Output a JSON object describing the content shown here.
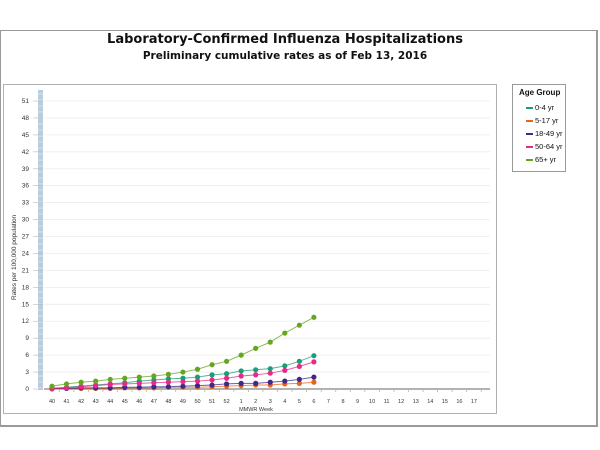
{
  "chart_data": {
    "type": "line",
    "title": "Laboratory-Confirmed Influenza Hospitalizations",
    "subtitle": "Preliminary cumulative rates as of Feb 13, 2016",
    "xlabel": "MMWR Week",
    "ylabel": "Rates per 100,000 population",
    "ylim": [
      0,
      51
    ],
    "yticks": [
      0,
      3,
      6,
      9,
      12,
      15,
      18,
      21,
      24,
      27,
      30,
      33,
      36,
      39,
      42,
      45,
      48,
      51
    ],
    "grid": true,
    "legend_title": "Age Group",
    "legend_position": "right",
    "categories": [
      "40",
      "41",
      "42",
      "43",
      "44",
      "45",
      "46",
      "47",
      "48",
      "49",
      "50",
      "51",
      "52",
      "1",
      "2",
      "3",
      "4",
      "5",
      "6",
      "7",
      "8",
      "9",
      "10",
      "11",
      "12",
      "13",
      "14",
      "15",
      "16",
      "17"
    ],
    "series": [
      {
        "name": "0-4 yr",
        "color": "#1a9e77",
        "values": [
          0.1,
          0.3,
          0.5,
          0.7,
          0.9,
          1.1,
          1.4,
          1.6,
          1.8,
          1.9,
          2.1,
          2.5,
          2.7,
          3.2,
          3.4,
          3.6,
          4.1,
          4.9,
          5.9
        ]
      },
      {
        "name": "5-17 yr",
        "color": "#e8641b",
        "values": [
          0.0,
          0.1,
          0.1,
          0.1,
          0.1,
          0.2,
          0.2,
          0.2,
          0.3,
          0.3,
          0.3,
          0.4,
          0.5,
          0.6,
          0.7,
          0.7,
          0.9,
          1.0,
          1.2
        ]
      },
      {
        "name": "18-49 yr",
        "color": "#3b2a8c",
        "values": [
          0.1,
          0.1,
          0.2,
          0.2,
          0.2,
          0.3,
          0.3,
          0.4,
          0.4,
          0.5,
          0.6,
          0.7,
          0.9,
          1.0,
          1.0,
          1.2,
          1.4,
          1.7,
          2.1
        ]
      },
      {
        "name": "50-64 yr",
        "color": "#e7298a",
        "values": [
          0.1,
          0.2,
          0.4,
          0.6,
          0.8,
          0.9,
          1.0,
          1.1,
          1.2,
          1.3,
          1.4,
          1.6,
          1.9,
          2.3,
          2.5,
          2.8,
          3.3,
          4.0,
          4.8
        ]
      },
      {
        "name": "65+ yr",
        "color": "#66a61e",
        "values": [
          0.5,
          0.9,
          1.2,
          1.4,
          1.7,
          1.9,
          2.1,
          2.3,
          2.6,
          3.0,
          3.5,
          4.3,
          4.9,
          6.0,
          7.2,
          8.3,
          9.9,
          11.3,
          12.7
        ]
      }
    ]
  }
}
